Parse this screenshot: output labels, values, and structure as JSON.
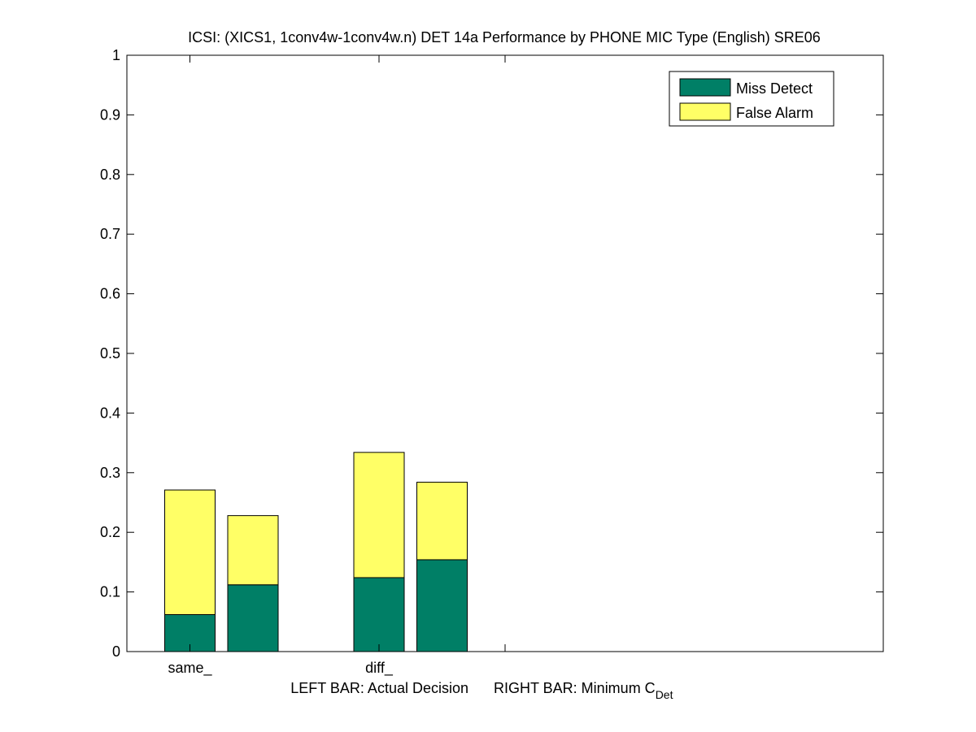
{
  "chart_data": {
    "type": "bar",
    "stacked": true,
    "title": "ICSI: (XICS1, 1conv4w-1conv4w.n) DET 14a Performance by PHONE MIC Type (English) SRE06",
    "xlabel_left": "LEFT BAR: Actual Decision",
    "xlabel_right_main": "RIGHT BAR: Minimum C",
    "xlabel_right_sub": "Det",
    "ylabel": "",
    "ylim": [
      0,
      1
    ],
    "yticks": [
      "0",
      "0.1",
      "0.2",
      "0.3",
      "0.4",
      "0.5",
      "0.6",
      "0.7",
      "0.8",
      "0.9",
      "1"
    ],
    "xlim": [
      0,
      12
    ],
    "xtick_positions": [
      1,
      4,
      6
    ],
    "group_positions": [
      1,
      4
    ],
    "categories": [
      "same_",
      "diff_"
    ],
    "bar_offsets": [
      0,
      1
    ],
    "bar_width": 0.8,
    "bars": [
      {
        "category": "same_",
        "kind": "Actual Decision",
        "miss": 0.062,
        "false_alarm": 0.209
      },
      {
        "category": "same_",
        "kind": "Minimum C_Det",
        "miss": 0.112,
        "false_alarm": 0.116
      },
      {
        "category": "diff_",
        "kind": "Actual Decision",
        "miss": 0.124,
        "false_alarm": 0.21
      },
      {
        "category": "diff_",
        "kind": "Minimum C_Det",
        "miss": 0.154,
        "false_alarm": 0.13
      }
    ],
    "series": [
      {
        "name": "Miss Detect",
        "color": "#007f66"
      },
      {
        "name": "False Alarm",
        "color": "#ffff66"
      }
    ],
    "legend_position": "top-right",
    "grid": false
  }
}
